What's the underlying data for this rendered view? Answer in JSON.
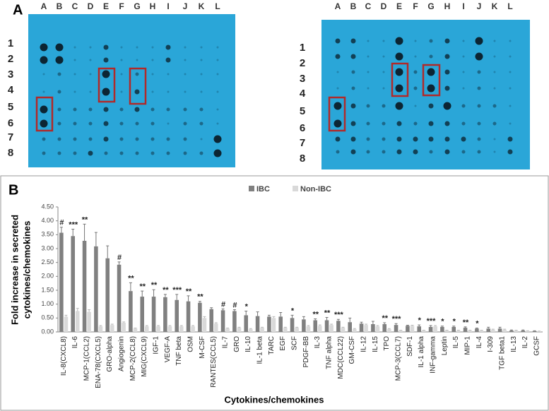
{
  "panel_a": {
    "label": "A",
    "left_blot": {
      "columns": [
        "A",
        "B",
        "C",
        "D",
        "E",
        "F",
        "G",
        "H",
        "I",
        "J",
        "K",
        "L"
      ],
      "rows": [
        "1",
        "2",
        "3",
        "4",
        "5",
        "6",
        "7",
        "8"
      ]
    },
    "right_blot": {
      "columns": [
        "A",
        "B",
        "C",
        "D",
        "E",
        "F",
        "G",
        "H",
        "I",
        "J",
        "K",
        "L"
      ],
      "rows": [
        "1",
        "2",
        "3",
        "4",
        "5",
        "6",
        "7",
        "8"
      ]
    }
  },
  "chart_data": {
    "type": "bar",
    "panel_label": "B",
    "x_label": "Cytokines/chemokines",
    "y_label": [
      "Fold increase in secreted",
      "cytokines/chemokines"
    ],
    "categories": [
      "IL-8(CXCL8)",
      "IL-6",
      "MCP-1(CCL2)",
      "ENA-78(CXCL5)",
      "GRO-alpha",
      "Angiogenin",
      "MCP-2(CCL8)",
      "MIG(CXCL9)",
      "IGF-1",
      "VEGF-A",
      "TNF beta",
      "OSM",
      "M-CSF",
      "RANTES(CCL5)",
      "IL-7",
      "GRO",
      "IL-10",
      "IL-1 beta",
      "TARC",
      "EGF",
      "SCF",
      "PDGF-BB",
      "IL-3",
      "TNF alpha",
      "MDC(CCL22)",
      "GM-CSF",
      "IL-12",
      "IL-15",
      "TPO",
      "MCP-3(CCL7)",
      "SDF-1",
      "IL-1 alpha",
      "INF-gamma",
      "Leptin",
      "IL-5",
      "MIP-1",
      "IL-4",
      "I-309",
      "TGF beta1",
      "IL-13",
      "IL-2",
      "GCSF"
    ],
    "series": [
      {
        "name": "IBC",
        "color": "#808080",
        "values": [
          3.57,
          3.45,
          3.28,
          3.08,
          2.65,
          2.42,
          1.47,
          1.27,
          1.27,
          1.25,
          1.15,
          1.1,
          1.05,
          0.82,
          0.78,
          0.75,
          0.6,
          0.57,
          0.55,
          0.55,
          0.5,
          0.45,
          0.42,
          0.42,
          0.4,
          0.35,
          0.3,
          0.28,
          0.28,
          0.25,
          0.22,
          0.2,
          0.18,
          0.18,
          0.18,
          0.15,
          0.12,
          0.12,
          0.12,
          0.05,
          0.05,
          0.03
        ],
        "errors": [
          0.2,
          0.25,
          0.6,
          0.5,
          0.45,
          0.1,
          0.3,
          0.2,
          0.25,
          0.1,
          0.2,
          0.2,
          0.05,
          0.05,
          0.05,
          0.05,
          0.15,
          0.15,
          0.05,
          0.15,
          0.1,
          0.1,
          0.05,
          0.1,
          0.05,
          0.15,
          0.05,
          0.1,
          0.05,
          0.05,
          0.02,
          0.05,
          0.05,
          0.03,
          0.03,
          0.03,
          0.02,
          0.05,
          0.05,
          0.02,
          0.02,
          0.01
        ]
      },
      {
        "name": "Non-IBC",
        "color": "#d9d9d9",
        "values": [
          0.55,
          0.75,
          0.72,
          0.2,
          0.25,
          0.33,
          0.12,
          0.2,
          0.2,
          0.2,
          0.2,
          0.2,
          0.5,
          0.3,
          0.12,
          0.15,
          0.1,
          0.15,
          0.5,
          0.15,
          0.15,
          0.2,
          0.22,
          0.25,
          0.15,
          0.1,
          0.25,
          0.2,
          0.1,
          0.05,
          0.22,
          0.05,
          0.2,
          0.05,
          0.05,
          0.05,
          0.05,
          0.08,
          0.08,
          0.05,
          0.03,
          0.02
        ],
        "errors": [
          0.05,
          0.1,
          0.08,
          0.03,
          0.03,
          0.03,
          0.02,
          0.03,
          0.03,
          0.03,
          0.03,
          0.03,
          0.05,
          0.03,
          0.02,
          0.02,
          0.02,
          0.02,
          0.05,
          0.02,
          0.02,
          0.03,
          0.03,
          0.03,
          0.02,
          0.02,
          0.03,
          0.03,
          0.02,
          0.01,
          0.02,
          0.01,
          0.03,
          0.01,
          0.01,
          0.01,
          0.01,
          0.02,
          0.02,
          0.01,
          0.01,
          0.01
        ]
      }
    ],
    "annotations": [
      "#",
      "***",
      "**",
      null,
      null,
      "#",
      "**",
      "**",
      "**",
      "**",
      "***",
      "**",
      "**",
      null,
      "#",
      "#",
      "*",
      null,
      null,
      null,
      "*",
      null,
      "**",
      "**",
      "***",
      null,
      null,
      null,
      "**",
      "***",
      null,
      "*",
      "***",
      "*",
      "*",
      "**",
      "*",
      null,
      null,
      null,
      null,
      null
    ],
    "ylim": [
      0,
      4.5
    ],
    "yticks": [
      {
        "value": 0,
        "label": "0.00"
      },
      {
        "value": 0.5,
        "label": "0.50"
      },
      {
        "value": 1,
        "label": "1.00"
      },
      {
        "value": 1.5,
        "label": "1.50"
      },
      {
        "value": 2,
        "label": "2.00"
      },
      {
        "value": 2.5,
        "label": "2.50"
      },
      {
        "value": 3,
        "label": "3.00"
      },
      {
        "value": 3.5,
        "label": "3.50"
      },
      {
        "value": 4,
        "label": "4.00"
      },
      {
        "value": 4.5,
        "label": "4.50"
      }
    ],
    "legend": "top",
    "grid": false
  }
}
